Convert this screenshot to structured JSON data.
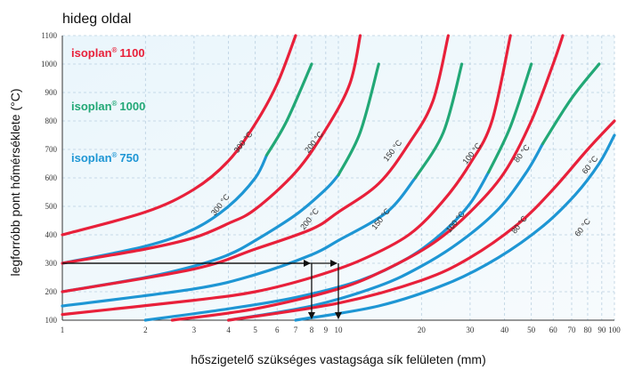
{
  "chart_data": {
    "type": "line",
    "title": "hideg oldal",
    "xlabel": "hőszigetelő szükséges vastagsága sík felületen (mm)",
    "ylabel": "legforróbb pont hőmérséklete (°C)",
    "xscale": "log",
    "xlim": [
      1,
      100
    ],
    "ylim": [
      100,
      1100
    ],
    "x_ticks": [
      "1",
      "2",
      "3",
      "4",
      "5",
      "6",
      "7",
      "8",
      "9",
      "10",
      "20",
      "30",
      "40",
      "50",
      "60",
      "70",
      "80",
      "90",
      "100"
    ],
    "y_ticks": [
      "100",
      "200",
      "300",
      "400",
      "500",
      "600",
      "700",
      "800",
      "900",
      "1000",
      "1100"
    ],
    "grid": true,
    "legend": [
      {
        "name": "isoplan® 1100",
        "label": "isoplan",
        "mark": "®",
        "number": "1100",
        "color": "#e8203a"
      },
      {
        "name": "isoplan® 1000",
        "label": "isoplan",
        "mark": "®",
        "number": "1000",
        "color": "#22a876"
      },
      {
        "name": "isoplan® 750",
        "label": "isoplan",
        "mark": "®",
        "number": "750",
        "color": "#1e96d4"
      }
    ],
    "series": [
      {
        "product": "isoplan® 1100",
        "curve": "300 °C",
        "color": "#e8203a",
        "points": [
          [
            1,
            400
          ],
          [
            2,
            480
          ],
          [
            3,
            560
          ],
          [
            4,
            660
          ],
          [
            5,
            790
          ],
          [
            6,
            930
          ],
          [
            7,
            1100
          ]
        ]
      },
      {
        "product": "isoplan® 750",
        "curve": "300 °C",
        "color": "#1e96d4",
        "points": [
          [
            1,
            300
          ],
          [
            2,
            360
          ],
          [
            3,
            420
          ],
          [
            4,
            500
          ],
          [
            5,
            600
          ],
          [
            5.5,
            680
          ]
        ]
      },
      {
        "product": "isoplan® 1000",
        "curve": "300 °C",
        "color": "#22a876",
        "points": [
          [
            5.5,
            680
          ],
          [
            6.5,
            800
          ],
          [
            8,
            1000
          ]
        ]
      },
      {
        "product": "isoplan® 1100",
        "curve": "200 °C",
        "color": "#e8203a",
        "points": [
          [
            1,
            300
          ],
          [
            2,
            350
          ],
          [
            3,
            390
          ],
          [
            4,
            440
          ],
          [
            5,
            490
          ],
          [
            7,
            620
          ],
          [
            9,
            770
          ],
          [
            11,
            930
          ],
          [
            12,
            1100
          ]
        ]
      },
      {
        "product": "isoplan® 750",
        "curve": "200 °C",
        "color": "#1e96d4",
        "points": [
          [
            1,
            200
          ],
          [
            2,
            250
          ],
          [
            3,
            290
          ],
          [
            4,
            330
          ],
          [
            5,
            380
          ],
          [
            7,
            470
          ],
          [
            9,
            560
          ],
          [
            10,
            610
          ]
        ]
      },
      {
        "product": "isoplan® 1000",
        "curve": "200 °C",
        "color": "#22a876",
        "points": [
          [
            10,
            610
          ],
          [
            12,
            760
          ],
          [
            14,
            1000
          ]
        ]
      },
      {
        "product": "isoplan® 1100",
        "curve": "150 °C",
        "color": "#e8203a",
        "points": [
          [
            1,
            200
          ],
          [
            3,
            280
          ],
          [
            5,
            350
          ],
          [
            8,
            420
          ],
          [
            10,
            480
          ],
          [
            14,
            580
          ],
          [
            18,
            720
          ],
          [
            22,
            870
          ],
          [
            25,
            1100
          ]
        ]
      },
      {
        "product": "isoplan® 750",
        "curve": "150 °C",
        "color": "#1e96d4",
        "points": [
          [
            1,
            150
          ],
          [
            3,
            210
          ],
          [
            5,
            260
          ],
          [
            8,
            330
          ],
          [
            10,
            380
          ],
          [
            15,
            480
          ],
          [
            19,
            600
          ]
        ]
      },
      {
        "product": "isoplan® 1000",
        "curve": "150 °C",
        "color": "#22a876",
        "points": [
          [
            19,
            600
          ],
          [
            24,
            760
          ],
          [
            28,
            1000
          ]
        ]
      },
      {
        "product": "isoplan® 1100",
        "curve": "100 °C",
        "color": "#e8203a",
        "points": [
          [
            1,
            120
          ],
          [
            3,
            170
          ],
          [
            5,
            200
          ],
          [
            8,
            250
          ],
          [
            12,
            310
          ],
          [
            18,
            400
          ],
          [
            24,
            520
          ],
          [
            30,
            650
          ],
          [
            36,
            800
          ],
          [
            42,
            1100
          ]
        ]
      },
      {
        "product": "isoplan® 750",
        "curve": "100 °C",
        "color": "#1e96d4",
        "points": [
          [
            2,
            100
          ],
          [
            4,
            140
          ],
          [
            7,
            180
          ],
          [
            12,
            240
          ],
          [
            18,
            320
          ],
          [
            24,
            410
          ],
          [
            30,
            510
          ],
          [
            35,
            620
          ]
        ]
      },
      {
        "product": "isoplan® 1000",
        "curve": "100 °C",
        "color": "#22a876",
        "points": [
          [
            35,
            620
          ],
          [
            42,
            780
          ],
          [
            50,
            1000
          ]
        ]
      },
      {
        "product": "isoplan® 1100",
        "curve": "80 °C",
        "color": "#e8203a",
        "points": [
          [
            2.5,
            100
          ],
          [
            5,
            140
          ],
          [
            10,
            210
          ],
          [
            15,
            280
          ],
          [
            22,
            370
          ],
          [
            30,
            480
          ],
          [
            40,
            620
          ],
          [
            50,
            800
          ],
          [
            60,
            1000
          ],
          [
            65,
            1100
          ]
        ]
      },
      {
        "product": "isoplan® 750",
        "curve": "80 °C",
        "color": "#1e96d4",
        "points": [
          [
            4,
            100
          ],
          [
            8,
            150
          ],
          [
            14,
            220
          ],
          [
            20,
            290
          ],
          [
            28,
            380
          ],
          [
            38,
            490
          ],
          [
            48,
            620
          ],
          [
            55,
            720
          ]
        ]
      },
      {
        "product": "isoplan® 1000",
        "curve": "80 °C",
        "color": "#22a876",
        "points": [
          [
            55,
            720
          ],
          [
            70,
            880
          ],
          [
            88,
            1000
          ]
        ]
      },
      {
        "product": "isoplan® 1100",
        "curve": "60 °C",
        "color": "#e8203a",
        "points": [
          [
            4,
            100
          ],
          [
            10,
            160
          ],
          [
            20,
            240
          ],
          [
            30,
            320
          ],
          [
            45,
            440
          ],
          [
            60,
            560
          ],
          [
            80,
            700
          ],
          [
            100,
            800
          ]
        ]
      },
      {
        "product": "isoplan® 750",
        "curve": "60 °C",
        "color": "#1e96d4",
        "points": [
          [
            7,
            100
          ],
          [
            14,
            150
          ],
          [
            25,
            230
          ],
          [
            38,
            320
          ],
          [
            55,
            430
          ],
          [
            72,
            540
          ],
          [
            88,
            650
          ],
          [
            100,
            750
          ]
        ]
      }
    ],
    "curve_labels": [
      {
        "text": "300 °C",
        "color": "#e8203a",
        "x": 4.6,
        "y": 720
      },
      {
        "text": "300 °C",
        "color": "#1e96d4",
        "x": 3.8,
        "y": 500
      },
      {
        "text": "200 °C",
        "color": "#e8203a",
        "x": 8.3,
        "y": 720
      },
      {
        "text": "200 °C",
        "color": "#1e96d4",
        "x": 8.0,
        "y": 450
      },
      {
        "text": "150 °C",
        "color": "#e8203a",
        "x": 16,
        "y": 690
      },
      {
        "text": "150 °C",
        "color": "#1e96d4",
        "x": 14.5,
        "y": 450
      },
      {
        "text": "100 °C",
        "color": "#e8203a",
        "x": 31,
        "y": 680
      },
      {
        "text": "100 °C",
        "color": "#1e96d4",
        "x": 27,
        "y": 440
      },
      {
        "text": "80 °C",
        "color": "#e8203a",
        "x": 47,
        "y": 680
      },
      {
        "text": "80 °C",
        "color": "#1e96d4",
        "x": 46,
        "y": 430
      },
      {
        "text": "60 °C",
        "color": "#e8203a",
        "x": 83,
        "y": 640
      },
      {
        "text": "60 °C",
        "color": "#1e96d4",
        "x": 78,
        "y": 420
      }
    ],
    "example_reading": {
      "temperature": 300,
      "x_values": [
        8,
        10
      ],
      "color": "#111111"
    }
  }
}
